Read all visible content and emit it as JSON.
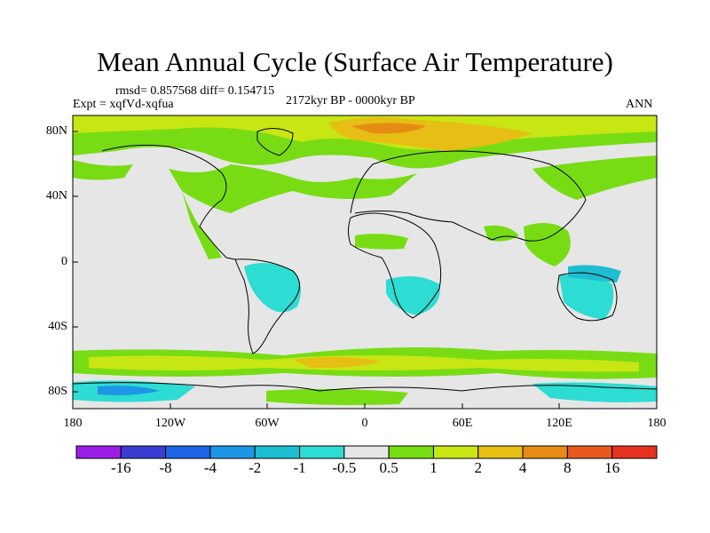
{
  "title": "Mean Annual Cycle (Surface Air Temperature)",
  "stats_text": "rmsd= 0.857568 diff= 0.154715",
  "expt_text": "Expt = xqfVd-xqfua",
  "period_text": "2172kyr BP - 0000kyr BP",
  "season_text": "ANN",
  "lat_ticks": [
    "80N",
    "40N",
    "0",
    "40S",
    "80S"
  ],
  "lon_ticks": [
    "180",
    "120W",
    "60W",
    "0",
    "60E",
    "120E",
    "180"
  ],
  "colorbar": {
    "labels": [
      "-16",
      "-8",
      "-4",
      "-2",
      "-1",
      "-0.5",
      "0.5",
      "1",
      "2",
      "4",
      "8",
      "16"
    ],
    "colors": [
      "#9b1ee6",
      "#3c3cd2",
      "#1e64e6",
      "#1e96e6",
      "#1ebed2",
      "#2ddcd2",
      "#e6e6e6",
      "#78dc14",
      "#c8e614",
      "#e6be14",
      "#e68c14",
      "#e65a1e",
      "#e6321e"
    ]
  },
  "colors": {
    "land_fill": "#e6e6e6",
    "coastline": "#000000"
  },
  "map_anomalies": [
    {
      "region": "arctic-ocean",
      "category": "4"
    },
    {
      "region": "north-atlantic",
      "category": "1"
    },
    {
      "region": "north-pacific",
      "category": "1"
    },
    {
      "region": "central-south-america",
      "category": "-1"
    },
    {
      "region": "southern-africa",
      "category": "-1"
    },
    {
      "region": "australia",
      "category": "-1"
    },
    {
      "region": "southern-ocean",
      "category": "2"
    },
    {
      "region": "antarctica",
      "category": "-1"
    }
  ]
}
